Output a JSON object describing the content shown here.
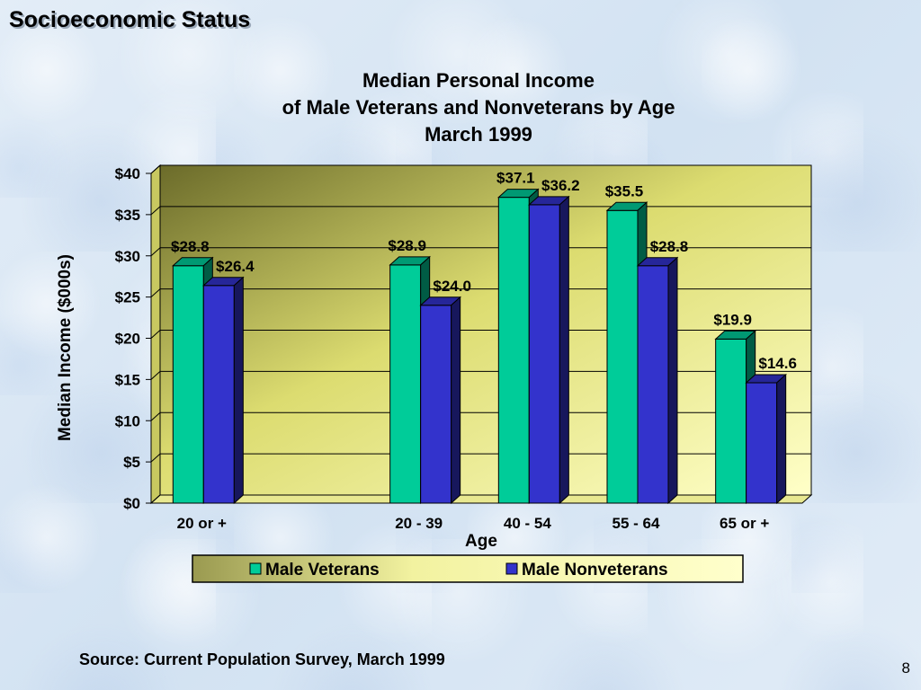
{
  "slide": {
    "title": "Socioeconomic Status",
    "source": "Source:  Current Population Survey, March 1999",
    "page_number": "8"
  },
  "chart_data": {
    "type": "bar",
    "title_lines": [
      "Median Personal Income",
      "of Male Veterans and Nonveterans by Age",
      "March 1999"
    ],
    "xlabel": "Age",
    "ylabel": "Median Income ($000s)",
    "categories": [
      "20  or +",
      "",
      "20 - 39",
      "40 - 54",
      "55 - 64",
      "65 or +"
    ],
    "series": [
      {
        "name": "Male Veterans",
        "color": "#00cc99",
        "values": [
          28.8,
          null,
          28.9,
          37.1,
          35.5,
          19.9
        ],
        "labels": [
          "$28.8",
          "",
          "$28.9",
          "$37.1",
          "$35.5",
          "$19.9"
        ]
      },
      {
        "name": "Male Nonveterans",
        "color": "#3333cc",
        "values": [
          26.4,
          null,
          24.0,
          36.2,
          28.8,
          14.6
        ],
        "labels": [
          "$26.4",
          "",
          "$24.0",
          "$36.2",
          "$28.8",
          "$14.6"
        ]
      }
    ],
    "y_ticks": [
      "$0",
      "$5",
      "$10",
      "$15",
      "$20",
      "$25",
      "$30",
      "$35",
      "$40"
    ],
    "ylim": [
      0,
      40
    ],
    "grid": true,
    "legend_position": "bottom",
    "plot_background": "#f5f2a0"
  }
}
